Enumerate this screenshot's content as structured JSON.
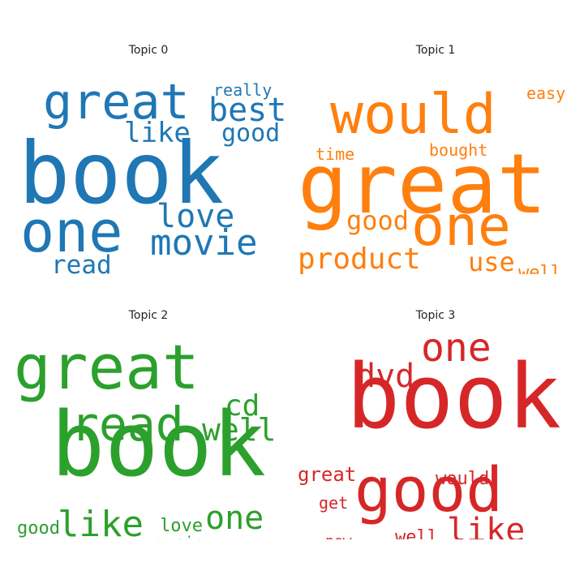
{
  "chart_data": [
    {
      "type": "wordcloud",
      "title": "Topic 0",
      "color": "#1f77b4",
      "words": [
        "book",
        "great",
        "one",
        "movie",
        "best",
        "love",
        "like",
        "good",
        "read",
        "really"
      ]
    },
    {
      "type": "wordcloud",
      "title": "Topic 1",
      "color": "#ff7f0e",
      "words": [
        "great",
        "would",
        "one",
        "product",
        "good",
        "use",
        "bought",
        "time",
        "easy",
        "well"
      ]
    },
    {
      "type": "wordcloud",
      "title": "Topic 2",
      "color": "#2ca02c",
      "words": [
        "book",
        "great",
        "read",
        "like",
        "well",
        "cd",
        "one",
        "love",
        "good",
        "music"
      ]
    },
    {
      "type": "wordcloud",
      "title": "Topic 3",
      "color": "#d62728",
      "words": [
        "book",
        "good",
        "one",
        "like",
        "dvd",
        "great",
        "would",
        "well",
        "get",
        "new"
      ]
    }
  ]
}
